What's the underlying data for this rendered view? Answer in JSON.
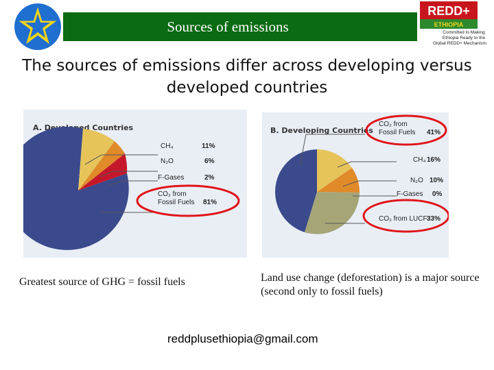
{
  "header": {
    "title": "Sources of emissions",
    "logo_text": "REDD+",
    "logo_sub": "ETHIOPIA",
    "logo_tagline": [
      "Committed to Making",
      "Ethiopia Ready to the",
      "Global REDD+ Mechanism"
    ]
  },
  "subtitle": "The sources of emissions differ across developing versus developed countries",
  "left_panel": {
    "title": "A. Developed Countries",
    "labels": [
      {
        "name": "CH₄",
        "value": "11%"
      },
      {
        "name": "N₂O",
        "value": "6%"
      },
      {
        "name": "F-Gases",
        "value": "2%"
      },
      {
        "name": "CO₂ from Fossil Fuels",
        "value": "81%"
      }
    ],
    "caption": "Greatest source of GHG = fossil fuels"
  },
  "right_panel": {
    "title": "B. Developing Countries",
    "labels": [
      {
        "name": "CO₂ from Fossil Fuels",
        "value": "41%"
      },
      {
        "name": "CH₄",
        "value": "16%"
      },
      {
        "name": "N₂O",
        "value": "10%"
      },
      {
        "name": "F-Gases",
        "value": "0%"
      },
      {
        "name": "CO₂ from LUCF",
        "value": "33%"
      }
    ],
    "caption": "Land use change (deforestation) is a major source (second only to fossil fuels)"
  },
  "email": "reddplusethiopia@gmail.com",
  "colors": {
    "header_green": "#0b6b13",
    "fossil_blue": "#3b4a8c",
    "ch4_yellow": "#e6c45a",
    "n2o_orange": "#e08a2a",
    "fgas_red": "#c4182a",
    "lucf_olive": "#a5a576",
    "highlight_red": "#e0141a"
  }
}
